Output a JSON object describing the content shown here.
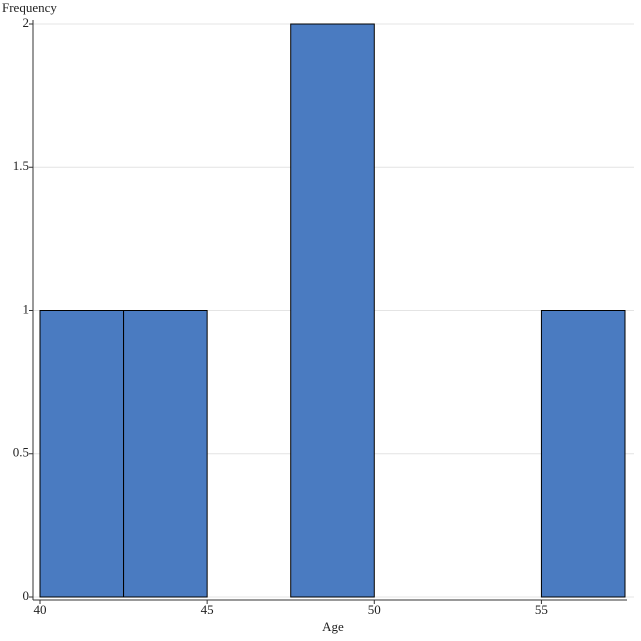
{
  "chart_data": {
    "type": "histogram",
    "x_label": "Age",
    "y_label": "Frequency",
    "bins": [
      40,
      42.5,
      45,
      47.5,
      50,
      52.5,
      55,
      57.5
    ],
    "values": [
      1,
      1,
      0,
      2,
      0,
      0,
      1
    ],
    "color": "#4a7bc1",
    "xlim": [
      40,
      57.5
    ],
    "xticks": [
      40,
      45,
      50,
      55
    ],
    "ylim": [
      0,
      2
    ],
    "yticks": [
      0,
      0.5,
      1,
      1.5,
      2
    ],
    "grid": true
  }
}
